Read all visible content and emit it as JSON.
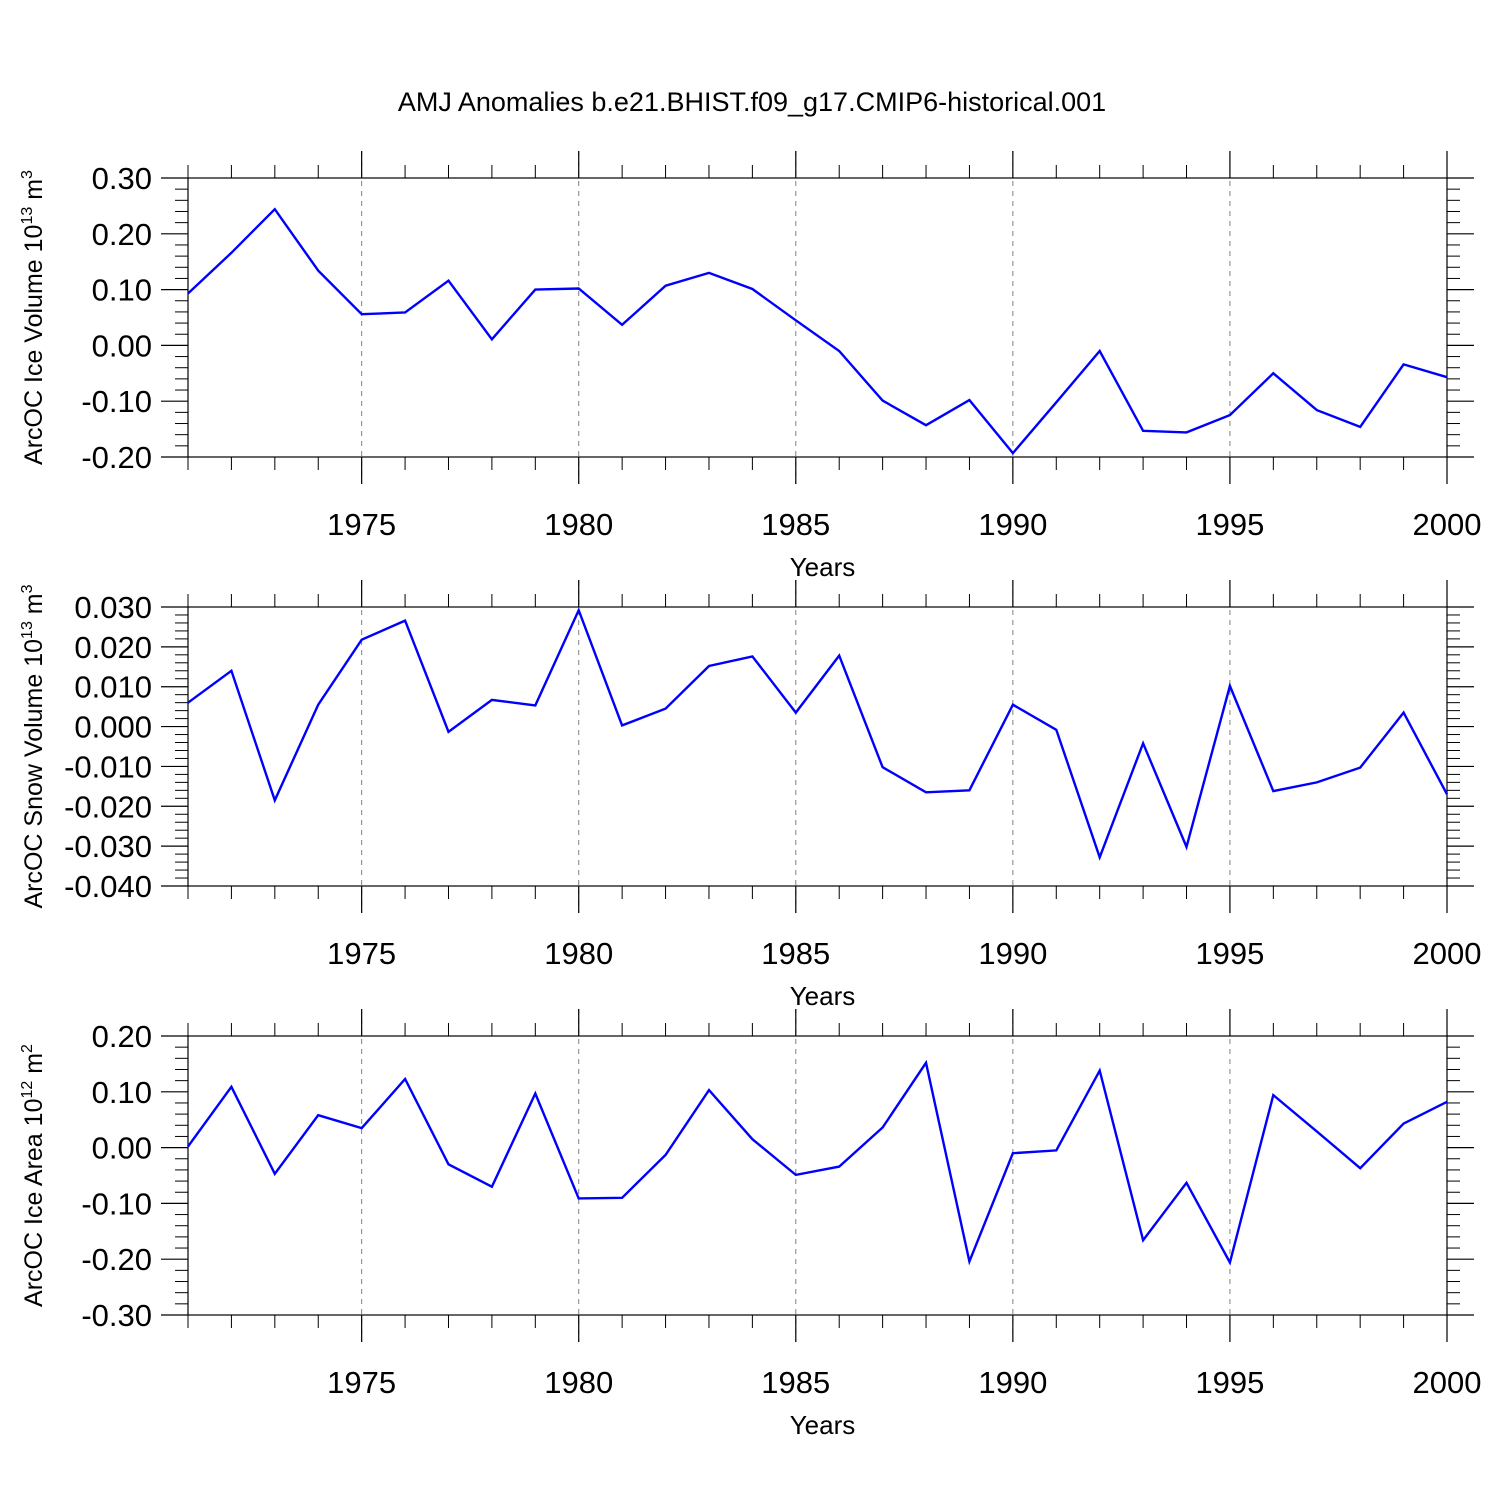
{
  "title": "AMJ Anomalies b.e21.BHIST.f09_g17.CMIP6-historical.001",
  "colors": {
    "line": "#0000ff",
    "axis": "#000000",
    "grid": "#808080"
  },
  "chart_data": [
    {
      "type": "line",
      "xlabel": "Years",
      "ylabel": {
        "text": "ArcOC Ice Volume 10",
        "exp": "13",
        "unit": " m",
        "unitexp": "3"
      },
      "xlim": [
        1971,
        2000
      ],
      "ylim": [
        -0.2,
        0.3
      ],
      "xticks": [
        1975,
        1980,
        1985,
        1990,
        1995,
        2000
      ],
      "yticks": [
        -0.2,
        -0.1,
        0.0,
        0.1,
        0.2,
        0.3
      ],
      "ytick_labels": [
        "-0.20",
        "-0.10",
        "0.00",
        "0.10",
        "0.20",
        "0.30"
      ],
      "grid": "vertical dashed at major x ticks",
      "x": [
        1971,
        1972,
        1973,
        1974,
        1975,
        1976,
        1977,
        1978,
        1979,
        1980,
        1981,
        1982,
        1983,
        1984,
        1985,
        1986,
        1987,
        1988,
        1989,
        1990,
        1991,
        1992,
        1993,
        1994,
        1995,
        1996,
        1997,
        1998,
        1999,
        2000
      ],
      "values": [
        0.093,
        0.166,
        0.244,
        0.134,
        0.056,
        0.059,
        0.116,
        0.011,
        0.1,
        0.102,
        0.037,
        0.107,
        0.13,
        0.101,
        0.045,
        -0.01,
        -0.099,
        -0.143,
        -0.098,
        -0.193,
        -0.102,
        -0.01,
        -0.153,
        -0.156,
        -0.125,
        -0.05,
        -0.116,
        -0.146,
        -0.034,
        -0.057
      ]
    },
    {
      "type": "line",
      "xlabel": "Years",
      "ylabel": {
        "text": "ArcOC Snow Volume 10",
        "exp": "13",
        "unit": " m",
        "unitexp": "3"
      },
      "xlim": [
        1971,
        2000
      ],
      "ylim": [
        -0.04,
        0.03
      ],
      "xticks": [
        1975,
        1980,
        1985,
        1990,
        1995,
        2000
      ],
      "yticks": [
        -0.04,
        -0.03,
        -0.02,
        -0.01,
        0.0,
        0.01,
        0.02,
        0.03
      ],
      "ytick_labels": [
        "-0.040",
        "-0.030",
        "-0.020",
        "-0.010",
        "0.000",
        "0.010",
        "0.020",
        "0.030"
      ],
      "grid": "vertical dashed at major x ticks",
      "x": [
        1971,
        1972,
        1973,
        1974,
        1975,
        1976,
        1977,
        1978,
        1979,
        1980,
        1981,
        1982,
        1983,
        1984,
        1985,
        1986,
        1987,
        1988,
        1989,
        1990,
        1991,
        1992,
        1993,
        1994,
        1995,
        1996,
        1997,
        1998,
        1999,
        2000
      ],
      "values": [
        0.006,
        0.014,
        -0.0185,
        0.0055,
        0.0218,
        0.0266,
        -0.0013,
        0.0067,
        0.0053,
        0.0292,
        0.0003,
        0.0045,
        0.0152,
        0.0176,
        0.0035,
        0.0178,
        -0.0102,
        -0.0165,
        -0.016,
        0.0055,
        -0.0008,
        -0.0328,
        -0.0042,
        -0.0302,
        0.0102,
        -0.0162,
        -0.014,
        -0.0103,
        0.0035,
        -0.017
      ]
    },
    {
      "type": "line",
      "xlabel": "Years",
      "ylabel": {
        "text": "ArcOC Ice Area 10",
        "exp": "12",
        "unit": " m",
        "unitexp": "2"
      },
      "xlim": [
        1971,
        2000
      ],
      "ylim": [
        -0.3,
        0.2
      ],
      "xticks": [
        1975,
        1980,
        1985,
        1990,
        1995,
        2000
      ],
      "yticks": [
        -0.3,
        -0.2,
        -0.1,
        0.0,
        0.1,
        0.2
      ],
      "ytick_labels": [
        "-0.30",
        "-0.20",
        "-0.10",
        "0.00",
        "0.10",
        "0.20"
      ],
      "grid": "vertical dashed at major x ticks",
      "x": [
        1971,
        1972,
        1973,
        1974,
        1975,
        1976,
        1977,
        1978,
        1979,
        1980,
        1981,
        1982,
        1983,
        1984,
        1985,
        1986,
        1987,
        1988,
        1989,
        1990,
        1991,
        1992,
        1993,
        1994,
        1995,
        1996,
        1997,
        1998,
        1999,
        2000
      ],
      "values": [
        0.002,
        0.109,
        -0.047,
        0.058,
        0.035,
        0.123,
        -0.03,
        -0.07,
        0.097,
        -0.091,
        -0.09,
        -0.013,
        0.103,
        0.015,
        -0.049,
        -0.034,
        0.036,
        0.152,
        -0.204,
        -0.01,
        -0.005,
        0.138,
        -0.166,
        -0.063,
        -0.206,
        0.094,
        0.029,
        -0.037,
        0.043,
        0.082
      ]
    }
  ]
}
